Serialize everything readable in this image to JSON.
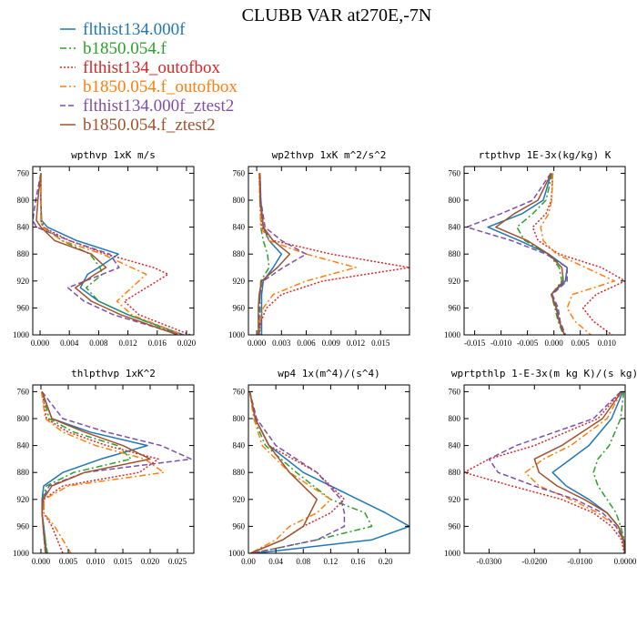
{
  "title": "CLUBB VAR at270E,-7N",
  "legend": [
    {
      "label": "flthist134.000f",
      "color": "#1f77b4",
      "dash": "solid"
    },
    {
      "label": "b1850.054.f",
      "color": "#2ca02c",
      "dash": "dashdot"
    },
    {
      "label": "flthist134_outofbox",
      "color": "#d62728",
      "dash": "dotted"
    },
    {
      "label": "b1850.054.f_outofbox",
      "color": "#ff7f0e",
      "dash": "dashdot"
    },
    {
      "label": "flthist134.000f_ztest2",
      "color": "#7e4fa8",
      "dash": "dashed"
    },
    {
      "label": "b1850.054.f_ztest2",
      "color": "#a0522d",
      "dash": "solid"
    }
  ],
  "chart_data": [
    {
      "type": "line",
      "title": "wpthvp  1xK m/s",
      "xlim": [
        -0.001,
        0.021
      ],
      "ylim": [
        1000,
        750
      ],
      "xticks": [
        "0.000",
        "0.004",
        "0.008",
        "0.012",
        "0.016",
        "0.020"
      ],
      "yticks": [
        "760",
        "800",
        "840",
        "880",
        "920",
        "960",
        "1000"
      ],
      "y": [
        760,
        800,
        830,
        840,
        860,
        880,
        900,
        910,
        930,
        950,
        970,
        1000
      ],
      "series": [
        {
          "name": "flthist134.000f",
          "x": [
            0.0001,
            0.0001,
            0.0002,
            0.001,
            0.005,
            0.0107,
            0.008,
            0.0065,
            0.0055,
            0.008,
            0.012,
            0.0196
          ]
        },
        {
          "name": "b1850.054.f",
          "x": [
            0.0001,
            0.0001,
            0.0002,
            0.0005,
            0.003,
            0.0068,
            0.0082,
            0.0085,
            0.0063,
            0.008,
            0.012,
            0.0192
          ]
        },
        {
          "name": "flthist134_outofbox",
          "x": [
            0.0001,
            0.0001,
            0.0001,
            0.0004,
            0.004,
            0.009,
            0.0155,
            0.0175,
            0.0145,
            0.0115,
            0.0135,
            0.0205
          ]
        },
        {
          "name": "b1850.054.f_outofbox",
          "x": [
            0.0001,
            0.0001,
            0.0001,
            0.0003,
            0.003,
            0.0085,
            0.0125,
            0.0145,
            0.0125,
            0.0105,
            0.0125,
            0.0195
          ]
        },
        {
          "name": "flthist134.000f_ztest2",
          "x": [
            0.0001,
            -0.0006,
            -0.001,
            -0.0005,
            0.004,
            0.0095,
            0.0108,
            0.0085,
            0.0038,
            0.006,
            0.01,
            0.0192
          ]
        },
        {
          "name": "b1850.054.f_ztest2",
          "x": [
            0.0001,
            -0.0003,
            -0.0005,
            0.0001,
            0.002,
            0.007,
            0.009,
            0.0075,
            0.0048,
            0.007,
            0.011,
            0.0188
          ]
        }
      ]
    },
    {
      "type": "line",
      "title": "wp2thvp  1xK m^2/s^2",
      "xlim": [
        -0.001,
        0.0185
      ],
      "ylim": [
        1000,
        750
      ],
      "xticks": [
        "0.000",
        "0.003",
        "0.006",
        "0.009",
        "0.012",
        "0.015"
      ],
      "yticks": [
        "760",
        "800",
        "840",
        "880",
        "920",
        "960",
        "1000"
      ],
      "y": [
        760,
        800,
        840,
        860,
        880,
        900,
        920,
        940,
        960,
        980,
        1000
      ],
      "series": [
        {
          "name": "flthist134.000f",
          "x": [
            0.0004,
            0.0005,
            0.0008,
            0.0015,
            0.003,
            0.002,
            0.0008,
            0.0006,
            0.0006,
            0.0006,
            0.0006
          ]
        },
        {
          "name": "b1850.054.f",
          "x": [
            0.0003,
            0.0004,
            0.0005,
            0.0008,
            0.0013,
            0.0015,
            0.0005,
            0.0004,
            0.0004,
            0.0004,
            0.0004
          ]
        },
        {
          "name": "flthist134_outofbox",
          "x": [
            0.0003,
            0.0004,
            0.0006,
            0.002,
            0.009,
            0.0185,
            0.008,
            0.003,
            0.0012,
            0.0005,
            0.0003
          ]
        },
        {
          "name": "b1850.054.f_outofbox",
          "x": [
            0.0003,
            0.0004,
            0.0005,
            0.0015,
            0.006,
            0.012,
            0.006,
            0.002,
            0.0008,
            0.0004,
            0.0002
          ]
        },
        {
          "name": "flthist134.000f_ztest2",
          "x": [
            0.0004,
            0.0005,
            0.001,
            0.003,
            0.006,
            0.0032,
            0.0008,
            0.0004,
            0.0003,
            0.0003,
            0.0003
          ]
        },
        {
          "name": "b1850.054.f_ztest2",
          "x": [
            0.0004,
            0.0004,
            0.0008,
            0.002,
            0.004,
            0.0025,
            0.0006,
            0.0003,
            0.0002,
            0.0002,
            0.0002
          ]
        }
      ]
    },
    {
      "type": "line",
      "title": "rtpthvp  1E-3x(kg/kg) K",
      "xlim": [
        -0.017,
        0.0135
      ],
      "ylim": [
        1000,
        750
      ],
      "xticks": [
        "-0.015",
        "-0.010",
        "-0.005",
        "0.000",
        "0.005",
        "0.010"
      ],
      "yticks": [
        "760",
        "800",
        "840",
        "880",
        "920",
        "960",
        "1000"
      ],
      "y": [
        760,
        800,
        820,
        840,
        860,
        880,
        900,
        920,
        940,
        960,
        980,
        1000
      ],
      "series": [
        {
          "name": "flthist134.000f",
          "x": [
            -0.0005,
            -0.002,
            -0.006,
            -0.0125,
            -0.0065,
            -0.001,
            0.0025,
            0.0022,
            -0.0005,
            0.0005,
            0.001,
            0.002
          ]
        },
        {
          "name": "b1850.054.f",
          "x": [
            -0.0003,
            -0.0015,
            -0.004,
            -0.007,
            -0.0055,
            -0.001,
            0.001,
            0.0015,
            -0.0005,
            0.0002,
            0.0008,
            0.0018
          ]
        },
        {
          "name": "flthist134_outofbox",
          "x": [
            -0.0002,
            -0.0005,
            -0.0015,
            -0.004,
            -0.003,
            0.001,
            0.009,
            0.0135,
            0.008,
            0.0055,
            0.0075,
            0.011
          ]
        },
        {
          "name": "b1850.054.f_outofbox",
          "x": [
            -0.0002,
            -0.0004,
            -0.001,
            -0.0025,
            -0.002,
            0.0005,
            0.006,
            0.0115,
            0.0035,
            0.0025,
            0.004,
            0.007
          ]
        },
        {
          "name": "flthist134.000f_ztest2",
          "x": [
            -0.0006,
            -0.004,
            -0.01,
            -0.0165,
            -0.008,
            -0.0015,
            0.0025,
            0.0025,
            -0.0003,
            0.0008,
            0.0012,
            0.0022
          ]
        },
        {
          "name": "b1850.054.f_ztest2",
          "x": [
            -0.0005,
            -0.003,
            -0.0075,
            -0.011,
            -0.005,
            -0.001,
            0.0015,
            0.0018,
            -0.0005,
            0.0004,
            0.001,
            0.002
          ]
        }
      ]
    },
    {
      "type": "line",
      "title": "thlpthvp  1xK^2",
      "xlim": [
        -0.0015,
        0.028
      ],
      "ylim": [
        1000,
        750
      ],
      "xticks": [
        "0.000",
        "0.005",
        "0.010",
        "0.015",
        "0.020",
        "0.025"
      ],
      "yticks": [
        "760",
        "800",
        "840",
        "880",
        "920",
        "960",
        "1000"
      ],
      "y": [
        760,
        800,
        820,
        840,
        860,
        880,
        900,
        920,
        940,
        960,
        980,
        1000
      ],
      "series": [
        {
          "name": "flthist134.000f",
          "x": [
            0.0002,
            0.002,
            0.009,
            0.0195,
            0.011,
            0.004,
            0.0005,
            0.0002,
            0.0002,
            0.0005,
            0.0008,
            0.001
          ]
        },
        {
          "name": "b1850.054.f",
          "x": [
            0.0002,
            0.0015,
            0.006,
            0.014,
            0.0165,
            0.006,
            0.001,
            0.0003,
            0.0002,
            0.0005,
            0.0008,
            0.0012
          ]
        },
        {
          "name": "flthist134_outofbox",
          "x": [
            0.0002,
            0.001,
            0.005,
            0.012,
            0.0215,
            0.018,
            0.004,
            0.0005,
            0.0005,
            0.002,
            0.003,
            0.004
          ]
        },
        {
          "name": "b1850.054.f_outofbox",
          "x": [
            0.0001,
            0.0008,
            0.004,
            0.01,
            0.019,
            0.0225,
            0.005,
            0.0006,
            0.0005,
            0.0025,
            0.004,
            0.0055
          ]
        },
        {
          "name": "flthist134.000f_ztest2",
          "x": [
            0.0002,
            0.004,
            0.012,
            0.022,
            0.0275,
            0.008,
            0.0015,
            0.0003,
            0.0002,
            0.0004,
            0.0006,
            0.0008
          ]
        },
        {
          "name": "b1850.054.f_ztest2",
          "x": [
            0.0002,
            0.002,
            0.008,
            0.015,
            0.02,
            0.008,
            0.002,
            0.0004,
            0.0002,
            0.0004,
            0.0006,
            0.0009
          ]
        }
      ]
    },
    {
      "type": "line",
      "title": "wp4  1x(m^4)/(s^4)",
      "xlim": [
        0.0,
        0.235
      ],
      "ylim": [
        1000,
        750
      ],
      "xticks": [
        "0.00",
        "0.04",
        "0.08",
        "0.12",
        "0.16",
        "0.20"
      ],
      "yticks": [
        "760",
        "800",
        "840",
        "880",
        "920",
        "960",
        "1000"
      ],
      "y": [
        760,
        800,
        840,
        880,
        920,
        940,
        960,
        980,
        1000
      ],
      "series": [
        {
          "name": "flthist134.000f",
          "x": [
            0.002,
            0.01,
            0.03,
            0.08,
            0.16,
            0.2,
            0.235,
            0.18,
            0.01
          ]
        },
        {
          "name": "b1850.054.f",
          "x": [
            0.002,
            0.008,
            0.025,
            0.07,
            0.12,
            0.17,
            0.18,
            0.1,
            0.005
          ]
        },
        {
          "name": "flthist134_outofbox",
          "x": [
            0.002,
            0.01,
            0.03,
            0.1,
            0.14,
            0.12,
            0.08,
            0.05,
            0.004
          ]
        },
        {
          "name": "b1850.054.f_outofbox",
          "x": [
            0.002,
            0.008,
            0.02,
            0.06,
            0.12,
            0.1,
            0.06,
            0.04,
            0.003
          ]
        },
        {
          "name": "flthist134.000f_ztest2",
          "x": [
            0.002,
            0.012,
            0.04,
            0.1,
            0.135,
            0.14,
            0.14,
            0.1,
            0.006
          ]
        },
        {
          "name": "b1850.054.f_ztest2",
          "x": [
            0.002,
            0.01,
            0.03,
            0.06,
            0.1,
            0.09,
            0.08,
            0.05,
            0.003
          ]
        }
      ]
    },
    {
      "type": "line",
      "title": "wprtpthlp  1-E-3x(m kg K)/(s kg)",
      "xlim": [
        -0.0355,
        0.0
      ],
      "ylim": [
        1000,
        750
      ],
      "xticks": [
        "-0.0300",
        "-0.0200",
        "-0.0100",
        "0.0000"
      ],
      "yticks": [
        "760",
        "800",
        "840",
        "880",
        "920",
        "960",
        "1000"
      ],
      "y": [
        760,
        800,
        840,
        860,
        880,
        900,
        920,
        940,
        960,
        980,
        1000
      ],
      "series": [
        {
          "name": "flthist134.000f",
          "x": [
            -0.0005,
            -0.003,
            -0.008,
            -0.012,
            -0.016,
            -0.013,
            -0.008,
            -0.004,
            -0.0015,
            -0.0003,
            -0.0001
          ]
        },
        {
          "name": "b1850.054.f",
          "x": [
            -0.0003,
            -0.001,
            -0.0035,
            -0.006,
            -0.007,
            -0.006,
            -0.004,
            -0.002,
            -0.001,
            -0.0002,
            -0.0001
          ]
        },
        {
          "name": "flthist134_outofbox",
          "x": [
            -0.001,
            -0.006,
            -0.02,
            -0.03,
            -0.0355,
            -0.025,
            -0.014,
            -0.007,
            -0.003,
            -0.0008,
            -0.0002
          ]
        },
        {
          "name": "b1850.054.f_outofbox",
          "x": [
            -0.0008,
            -0.004,
            -0.012,
            -0.018,
            -0.022,
            -0.019,
            -0.012,
            -0.006,
            -0.002,
            -0.0005,
            -0.0001
          ]
        },
        {
          "name": "flthist134.000f_ztest2",
          "x": [
            -0.001,
            -0.007,
            -0.024,
            -0.03,
            -0.028,
            -0.02,
            -0.011,
            -0.005,
            -0.002,
            -0.0005,
            -0.0001
          ]
        },
        {
          "name": "b1850.054.f_ztest2",
          "x": [
            -0.0008,
            -0.005,
            -0.014,
            -0.02,
            -0.019,
            -0.015,
            -0.009,
            -0.004,
            -0.0015,
            -0.0004,
            -0.0001
          ]
        }
      ]
    }
  ]
}
